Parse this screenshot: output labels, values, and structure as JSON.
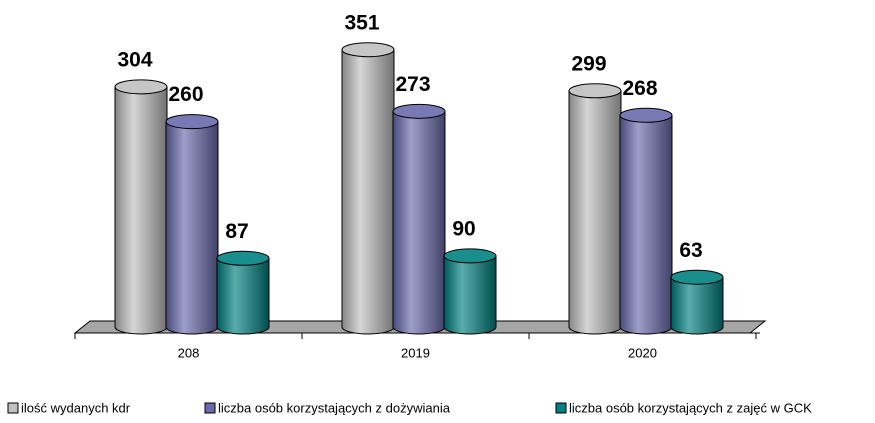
{
  "chart_data": {
    "type": "bar3d",
    "categories": [
      "208",
      "2019",
      "2020"
    ],
    "series": [
      {
        "name": "ilość wydanych kdr",
        "color": "#c0c0c0",
        "values": [
          304,
          351,
          299
        ]
      },
      {
        "name": "liczba osób korzystających z dożywiania",
        "color": "#6a6aae",
        "values": [
          260,
          273,
          268
        ]
      },
      {
        "name": "liczba osób korzystających z zajęć w GCK",
        "color": "#008080",
        "values": [
          87,
          90,
          63
        ]
      }
    ]
  }
}
